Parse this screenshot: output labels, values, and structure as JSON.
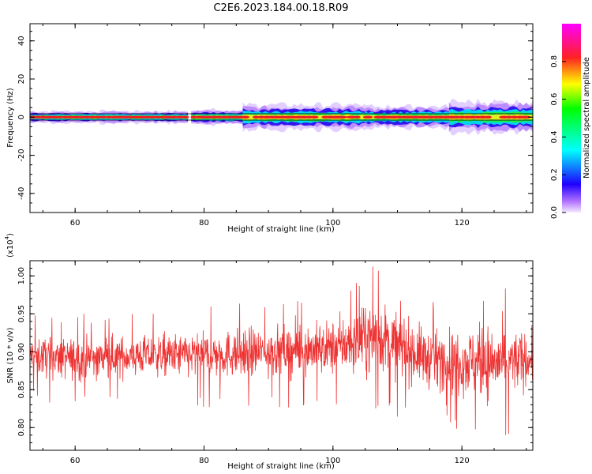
{
  "title": "C2E6.2023.184.00.18.R09",
  "chart_data": [
    {
      "type": "heatmap",
      "xlabel": "Height of straight line (km)",
      "ylabel": "Frequency (Hz)",
      "xlim": [
        53,
        131
      ],
      "ylim": [
        -50,
        49
      ],
      "xticks": [
        60,
        80,
        100,
        120
      ],
      "yticks": [
        -40,
        -20,
        0,
        20,
        40
      ],
      "colorbar": {
        "label": "Normalized spectral amplitude",
        "range": [
          0,
          1
        ],
        "ticks": [
          "0.0",
          "0.2",
          "0.4",
          "0.6",
          "0.8"
        ],
        "tick_values": [
          0.0,
          0.2,
          0.4,
          0.6,
          0.8
        ]
      },
      "ridge": {
        "center_frequency": 0,
        "segments": [
          {
            "x_start": 53,
            "x_end": 77.5,
            "half_width": 2,
            "peak": 0.95
          },
          {
            "x_start": 78,
            "x_end": 86,
            "half_width": 2.5,
            "peak": 0.9
          },
          {
            "x_start": 86,
            "x_end": 105,
            "half_width": 4,
            "peak": 0.75
          },
          {
            "x_start": 105,
            "x_end": 118,
            "half_width": 3.5,
            "peak": 0.8
          },
          {
            "x_start": 118,
            "x_end": 131,
            "half_width": 5,
            "peak": 0.7
          }
        ]
      }
    },
    {
      "type": "line",
      "xlabel": "Height of straight line (km)",
      "ylabel": "SNR (10 * v/v)",
      "y_multiplier_label": "(x10",
      "y_multiplier_exp": "4",
      "xlim": [
        53,
        131
      ],
      "ylim": [
        0.77,
        1.02
      ],
      "xticks": [
        60,
        80,
        100,
        120
      ],
      "yticks": [
        "0.80",
        "0.85",
        "0.90",
        "0.95",
        "1.00"
      ],
      "ytick_values": [
        0.8,
        0.85,
        0.9,
        0.95,
        1.0
      ],
      "series": [
        {
          "color": "#ee3333",
          "sample_count": 1560,
          "x_start": 53,
          "x_end": 131,
          "mean": 0.895,
          "spread": 0.025,
          "envelope": [
            {
              "x": 53,
              "min": 0.84,
              "max": 0.95
            },
            {
              "x": 60,
              "min": 0.83,
              "max": 0.95
            },
            {
              "x": 70,
              "min": 0.84,
              "max": 0.95
            },
            {
              "x": 80,
              "min": 0.83,
              "max": 0.96
            },
            {
              "x": 90,
              "min": 0.83,
              "max": 0.97
            },
            {
              "x": 100,
              "min": 0.83,
              "max": 0.98
            },
            {
              "x": 107,
              "min": 0.82,
              "max": 1.02
            },
            {
              "x": 115,
              "min": 0.81,
              "max": 0.97
            },
            {
              "x": 125,
              "min": 0.78,
              "max": 0.99
            },
            {
              "x": 131,
              "min": 0.82,
              "max": 0.96
            }
          ]
        }
      ]
    }
  ]
}
